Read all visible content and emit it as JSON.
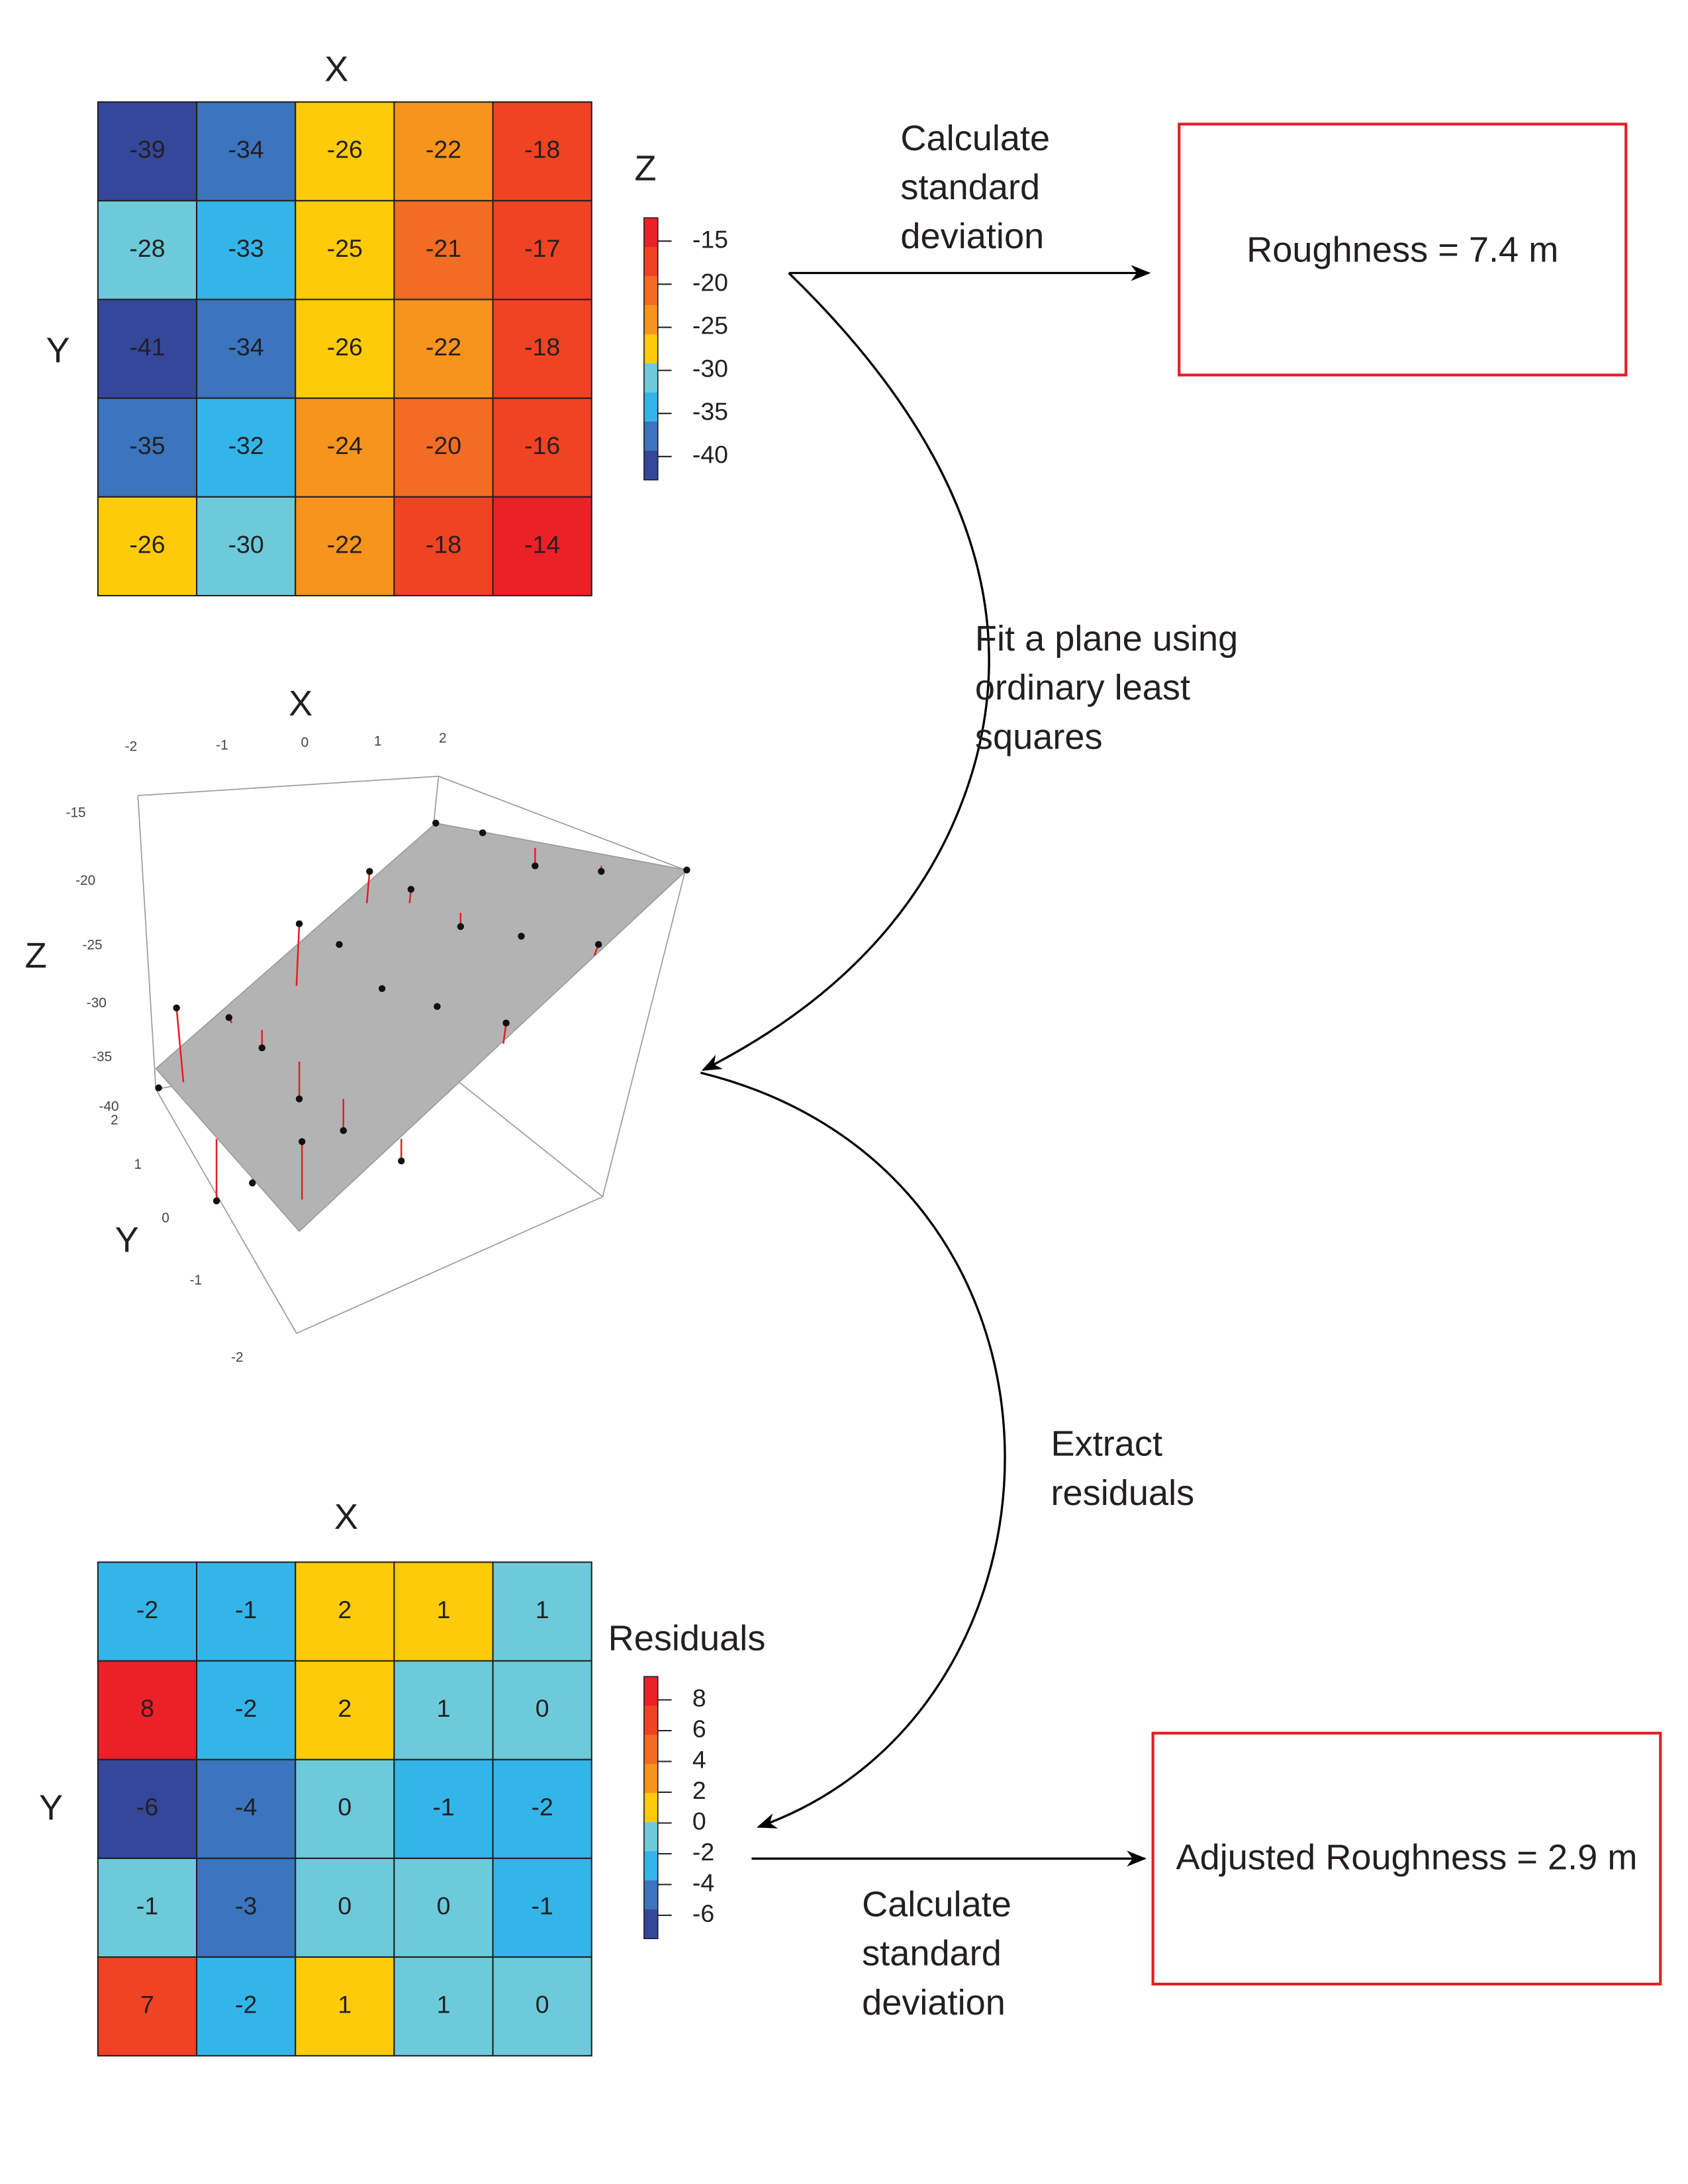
{
  "palette": {
    "DB": "#34479b",
    "MB": "#3a75bd",
    "LB": "#34b5e9",
    "CY": "#6ccadb",
    "YE": "#fecb0a",
    "OR": "#f7941d",
    "DO": "#f26c23",
    "RO": "#ef4323",
    "RE": "#ec2027"
  },
  "top_grid": {
    "x_label": "X",
    "y_label": "Y",
    "rows": [
      [
        "-39",
        "-34",
        "-26",
        "-22",
        "-18"
      ],
      [
        "-28",
        "-33",
        "-25",
        "-21",
        "-17"
      ],
      [
        "-41",
        "-34",
        "-26",
        "-22",
        "-18"
      ],
      [
        "-35",
        "-32",
        "-24",
        "-20",
        "-16"
      ],
      [
        "-26",
        "-30",
        "-22",
        "-18",
        "-14"
      ]
    ],
    "cell_colors": [
      [
        "DB",
        "MB",
        "YE",
        "OR",
        "RO"
      ],
      [
        "CY",
        "LB",
        "YE",
        "DO",
        "RO"
      ],
      [
        "DB",
        "MB",
        "YE",
        "OR",
        "RO"
      ],
      [
        "MB",
        "LB",
        "OR",
        "DO",
        "RO"
      ],
      [
        "YE",
        "CY",
        "OR",
        "RO",
        "RE"
      ]
    ],
    "legend_title": "Z",
    "legend_colors": [
      "RE",
      "RO",
      "DO",
      "OR",
      "YE",
      "CY",
      "LB",
      "MB",
      "DB"
    ],
    "legend_ticks": [
      "-15",
      "-20",
      "-25",
      "-30",
      "-35",
      "-40"
    ]
  },
  "plot3d": {
    "x_label": "X",
    "y_label": "Y",
    "z_label": "Z",
    "x_ticks": [
      "-2",
      "-1",
      "0",
      "1",
      "2"
    ],
    "y_ticks": [
      "2",
      "1",
      "0",
      "-1",
      "-2"
    ],
    "z_ticks": [
      "-15",
      "-20",
      "-25",
      "-30",
      "-35",
      "-40"
    ]
  },
  "bottom_grid": {
    "x_label": "X",
    "y_label": "Y",
    "rows": [
      [
        "-2",
        "-1",
        "2",
        "1",
        "1"
      ],
      [
        "8",
        "-2",
        "2",
        "1",
        "0"
      ],
      [
        "-6",
        "-4",
        "0",
        "-1",
        "-2"
      ],
      [
        "-1",
        "-3",
        "0",
        "0",
        "-1"
      ],
      [
        "7",
        "-2",
        "1",
        "1",
        "0"
      ]
    ],
    "cell_colors": [
      [
        "LB",
        "LB",
        "YE",
        "YE",
        "CY"
      ],
      [
        "RE",
        "LB",
        "YE",
        "CY",
        "CY"
      ],
      [
        "DB",
        "MB",
        "CY",
        "LB",
        "LB"
      ],
      [
        "CY",
        "MB",
        "CY",
        "CY",
        "LB"
      ],
      [
        "RO",
        "LB",
        "YE",
        "CY",
        "CY"
      ]
    ],
    "legend_title": "Residuals",
    "legend_colors": [
      "RE",
      "RO",
      "DO",
      "OR",
      "YE",
      "CY",
      "LB",
      "MB",
      "DB"
    ],
    "legend_ticks": [
      "8",
      "6",
      "4",
      "2",
      "0",
      "-2",
      "-4",
      "-6"
    ]
  },
  "steps": {
    "std_top": [
      "Calculate",
      "standard",
      "deviation"
    ],
    "fit": [
      "Fit a plane using",
      "ordinary least",
      "squares"
    ],
    "extract": [
      "Extract",
      "residuals"
    ],
    "std_bottom": [
      "Calculate",
      "standard",
      "deviation"
    ]
  },
  "results": {
    "roughness": "Roughness = 7.4 m",
    "adjusted": "Adjusted Roughness = 2.9 m"
  }
}
